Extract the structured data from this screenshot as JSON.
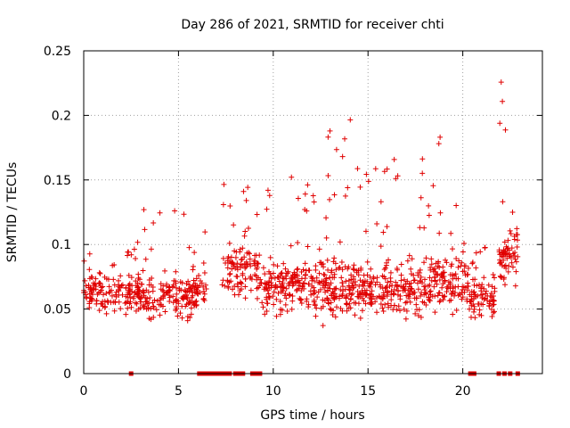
{
  "chart_data": {
    "type": "scatter",
    "title": "Day 286 of 2021, SRMTID for receiver chti",
    "xlabel": "GPS time / hours",
    "ylabel": "SRMTID / TECUs",
    "xlim": [
      0,
      24.2
    ],
    "ylim": [
      0,
      0.25
    ],
    "xticks": [
      0,
      5,
      10,
      15,
      20
    ],
    "xtick_labels": [
      "0",
      "5",
      "10",
      "15",
      "20"
    ],
    "yticks": [
      0,
      0.05,
      0.1,
      0.15,
      0.2,
      0.25
    ],
    "ytick_labels": [
      "0",
      "0.05",
      "0.1",
      "0.15",
      "0.2",
      "0.25"
    ],
    "grid": true,
    "marker": "plus",
    "color": "#e00000",
    "zero_value_times": [
      2.5,
      6.1,
      6.3,
      6.5,
      6.7,
      6.9,
      7.1,
      7.3,
      7.5,
      7.7,
      8.0,
      8.2,
      8.4,
      8.9,
      9.1,
      9.3,
      20.4,
      20.5,
      20.6,
      21.9,
      22.2,
      22.5,
      22.9
    ],
    "series": [
      {
        "name": "SRMTID",
        "segments": [
          {
            "t0": 0.0,
            "t1": 2.9,
            "base": 0.062,
            "spread": 0.022,
            "peak": 0.1,
            "n": 150
          },
          {
            "t0": 2.8,
            "t1": 6.0,
            "base": 0.06,
            "spread": 0.025,
            "peak": 0.133,
            "n": 170
          },
          {
            "t0": 5.7,
            "t1": 6.5,
            "base": 0.065,
            "spread": 0.02,
            "peak": 0.115,
            "n": 35
          },
          {
            "t0": 7.3,
            "t1": 9.3,
            "base": 0.08,
            "spread": 0.03,
            "peak": 0.16,
            "n": 110
          },
          {
            "t0": 9.3,
            "t1": 12.5,
            "base": 0.068,
            "spread": 0.028,
            "peak": 0.153,
            "n": 190
          },
          {
            "t0": 12.5,
            "t1": 14.8,
            "base": 0.065,
            "spread": 0.032,
            "peak": 0.2,
            "n": 170
          },
          {
            "t0": 14.8,
            "t1": 18.2,
            "base": 0.065,
            "spread": 0.03,
            "peak": 0.168,
            "n": 200
          },
          {
            "t0": 18.2,
            "t1": 20.3,
            "base": 0.07,
            "spread": 0.03,
            "peak": 0.19,
            "n": 130
          },
          {
            "t0": 20.3,
            "t1": 21.7,
            "base": 0.058,
            "spread": 0.02,
            "peak": 0.1,
            "n": 80
          },
          {
            "t0": 21.9,
            "t1": 22.9,
            "base": 0.09,
            "spread": 0.035,
            "peak": 0.23,
            "n": 70
          }
        ]
      }
    ]
  }
}
